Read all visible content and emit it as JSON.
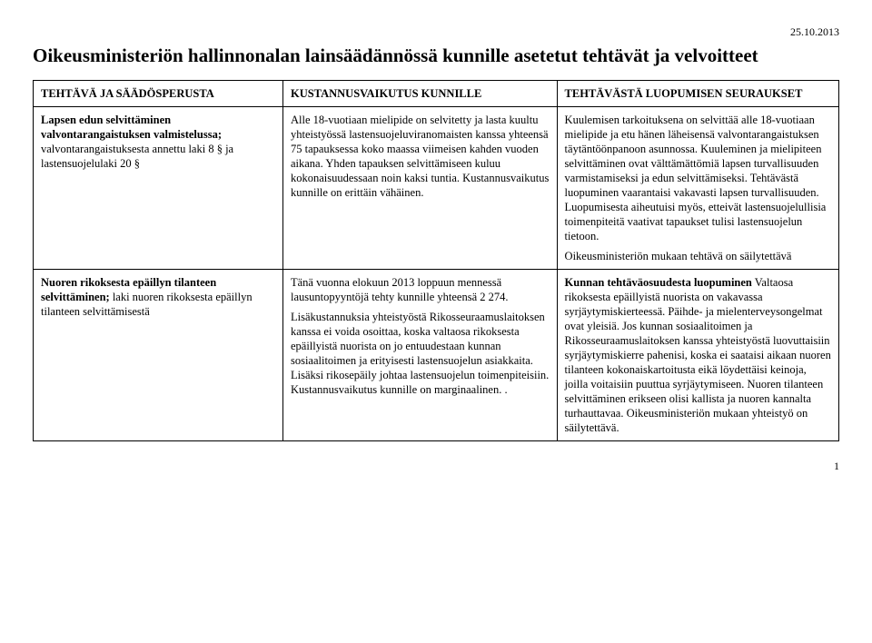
{
  "date": "25.10.2013",
  "title": "Oikeusministeriön hallinnonalan lainsäädännössä kunnille asetetut tehtävät ja velvoitteet",
  "columns": {
    "c1": "TEHTÄVÄ JA SÄÄDÖSPERUSTA",
    "c2": "KUSTANNUSVAIKUTUS KUNNILLE",
    "c3": "TEHTÄVÄSTÄ LUOPUMISEN SEURAUKSET"
  },
  "row1": {
    "c1_bold": "Lapsen edun selvittäminen valvontarangaistuksen valmistelussa;",
    "c1_rest": "valvontarangaistuksesta annettu laki 8 § ja lastensuojelulaki 20 §",
    "c2": "Alle 18-vuotiaan mielipide on selvitetty ja lasta kuultu yhteistyössä lastensuojelu­viranomaisten kanssa yhteensä 75 tapauksessa koko maassa viimeisen kahden vuoden aikana. Yhden tapauksen selvittämiseen kuluu kokonaisuudessaan noin kaksi tuntia. Kustannusvaikutus kunnille on erittäin vähäinen.",
    "c3_p1": "Kuulemisen tarkoituksena on selvittää alle 18-vuotiaan mielipide ja etu hänen läheisensä valvontarangaistuksen täytäntöönpanoon asunnossa. Kuuleminen ja mielipiteen selvittäminen ovat välttämättömiä lapsen turvallisuuden varmistamiseksi ja edun selvittämiseksi. Tehtävästä luopuminen vaarantaisi vakavasti lapsen turvallisuuden. Luopumisesta aiheutuisi myös, etteivät lastensuojelullisia toimenpiteitä vaativat tapaukset tulisi lastensuojelun tietoon.",
    "c3_p2": "Oikeusministeriön mukaan tehtävä on säilytettävä"
  },
  "row2": {
    "c1_bold": "Nuoren rikoksesta epäillyn tilanteen selvittäminen;",
    "c1_rest": "laki nuoren rikoksesta epäillyn tilanteen selvittämisestä",
    "c2_p1": "Tänä vuonna elokuun 2013 loppuun mennessä lausuntopyyntöjä tehty kunnille yhteensä 2 274.",
    "c2_p2": "Lisäkustannuksia yhteistyöstä Rikosseuraamuslaitoksen kanssa ei voida osoittaa, koska valtaosa rikoksesta epäillyistä nuorista on jo entuudestaan kunnan sosiaalitoimen ja erityisesti lastensuojelun asiakkaita. Lisäksi rikosepäily johtaa lastensuojelun toimenpiteisiin. Kustannusvaikutus kunnille on marginaalinen. .",
    "c3_bold": "Kunnan tehtäväosuudesta luopuminen",
    "c3_rest": "Valtaosa rikoksesta epäillyistä nuorista on vakavassa syrjäytymiskierteessä. Päihde- ja mielenterveysongelmat ovat yleisiä. Jos kunnan sosiaalitoimen ja Rikosseuraamuslaitoksen kanssa yhteistyöstä luovuttaisiin syrjäytymiskierre pahenisi, koska ei saataisi aikaan nuoren tilanteen kokonaiskartoitusta eikä löydettäisi keinoja, joilla voitaisiin puuttua syrjäytymiseen. Nuoren tilanteen selvittäminen erikseen olisi kallista ja nuoren kannalta turhauttavaa. Oikeusministeriön mukaan yhteistyö on säilytettävä."
  },
  "pagenum": "1"
}
